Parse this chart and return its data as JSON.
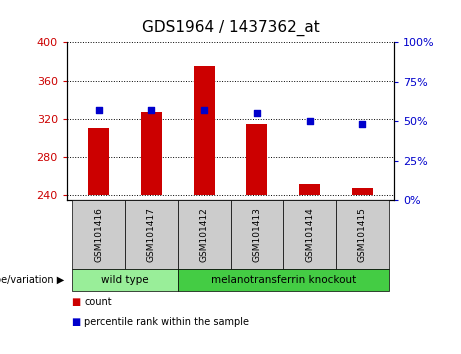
{
  "title": "GDS1964 / 1437362_at",
  "samples": [
    "GSM101416",
    "GSM101417",
    "GSM101412",
    "GSM101413",
    "GSM101414",
    "GSM101415"
  ],
  "count_values": [
    310,
    327,
    375,
    315,
    252,
    248
  ],
  "percentile_values": [
    57,
    57,
    57,
    55,
    50,
    48
  ],
  "ylim_left": [
    235,
    400
  ],
  "ylim_right": [
    0,
    100
  ],
  "yticks_left": [
    240,
    280,
    320,
    360,
    400
  ],
  "yticks_right": [
    0,
    25,
    50,
    75,
    100
  ],
  "bar_color": "#cc0000",
  "dot_color": "#0000cc",
  "bar_bottom": 240,
  "groups": [
    {
      "label": "wild type",
      "indices": [
        0,
        1
      ],
      "color": "#99ee99"
    },
    {
      "label": "melanotransferrin knockout",
      "indices": [
        2,
        3,
        4,
        5
      ],
      "color": "#44cc44"
    }
  ],
  "group_label": "genotype/variation",
  "legend_count_color": "#cc0000",
  "legend_percentile_color": "#0000cc",
  "tick_label_color_left": "#cc0000",
  "tick_label_color_right": "#0000cc",
  "title_fontsize": 11,
  "axis_fontsize": 8,
  "sample_bg_color": "#cccccc",
  "bar_width": 0.4
}
